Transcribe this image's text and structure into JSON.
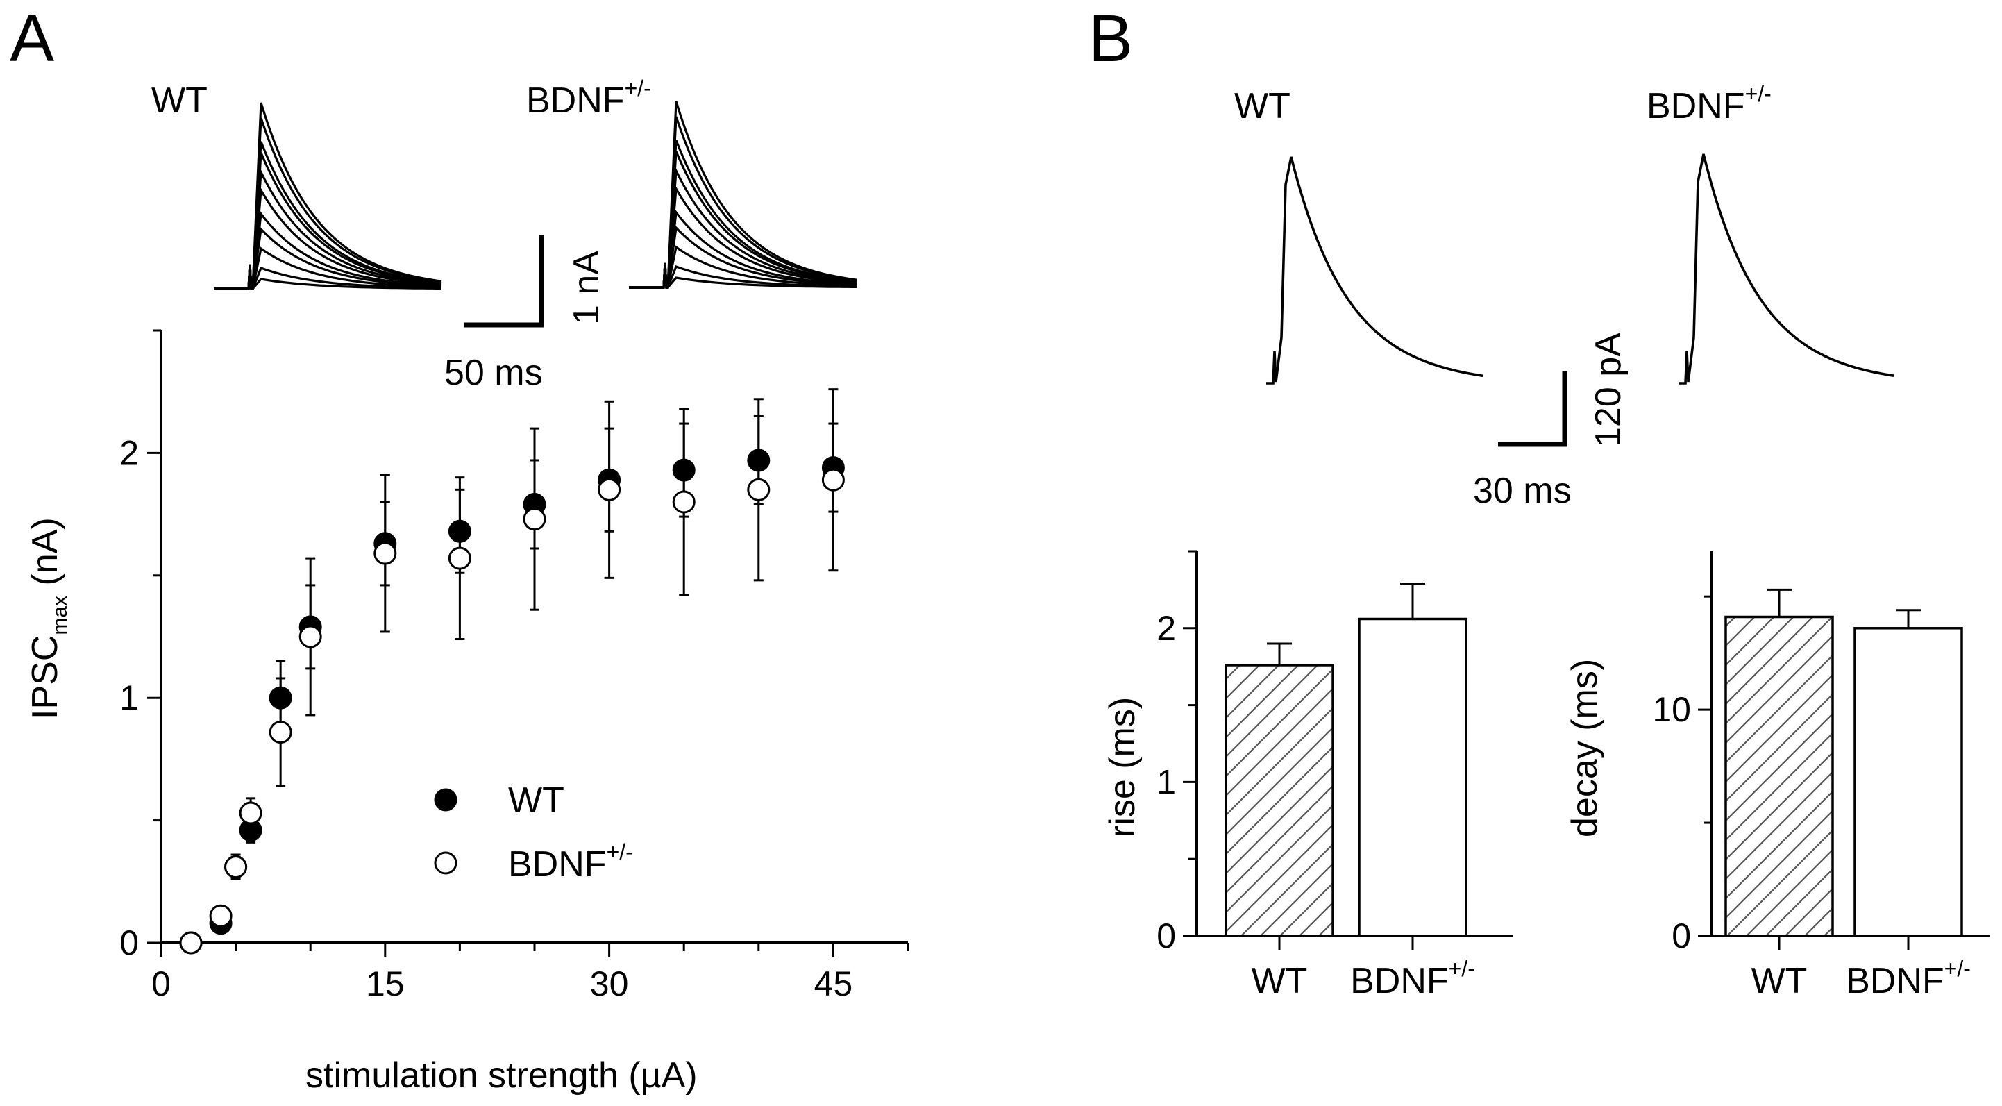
{
  "panels": {
    "a": {
      "letter": "A",
      "traces": {
        "wt_label": "WT",
        "bdnf_label": "BDNF",
        "bdnf_sup": "+/-",
        "scale_y": "1 nA",
        "scale_x": "50 ms"
      },
      "legend": {
        "wt": "WT",
        "bdnf": "BDNF",
        "bdnf_sup": "+/-"
      }
    },
    "b": {
      "letter": "B",
      "traces": {
        "wt_label": "WT",
        "bdnf_label": "BDNF",
        "bdnf_sup": "+/-",
        "scale_y": "120 pA",
        "scale_x": "30 ms"
      },
      "bar_labels": {
        "wt": "WT",
        "bdnf": "BDNF",
        "bdnf_sup": "+/-"
      }
    }
  },
  "chart_data": [
    {
      "id": "ipsc_vs_stim",
      "type": "scatter",
      "title": "",
      "xlabel": "stimulation strength (µA)",
      "ylabel": "IPSC",
      "ylabel_sub": "max",
      "ylabel_unit": " (nA)",
      "xlim": [
        0,
        50
      ],
      "ylim": [
        0,
        2.5
      ],
      "xticks": [
        0,
        15,
        30,
        45
      ],
      "yticks": [
        0,
        1,
        2
      ],
      "series": [
        {
          "name": "WT",
          "marker": "filled-circle",
          "x": [
            2,
            4,
            5,
            6,
            8,
            10,
            15,
            20,
            25,
            30,
            35,
            40,
            45
          ],
          "y": [
            0.0,
            0.08,
            0.31,
            0.46,
            1.0,
            1.29,
            1.63,
            1.68,
            1.79,
            1.89,
            1.93,
            1.97,
            1.94
          ],
          "err": [
            0.0,
            0.02,
            0.04,
            0.05,
            0.15,
            0.17,
            0.17,
            0.17,
            0.18,
            0.21,
            0.19,
            0.18,
            0.18
          ]
        },
        {
          "name": "BDNF+/-",
          "marker": "open-circle",
          "x": [
            2,
            4,
            5,
            6,
            8,
            10,
            15,
            20,
            25,
            30,
            35,
            40,
            45
          ],
          "y": [
            0.0,
            0.11,
            0.31,
            0.53,
            0.86,
            1.25,
            1.59,
            1.57,
            1.73,
            1.85,
            1.8,
            1.85,
            1.89
          ],
          "err": [
            0.0,
            0.03,
            0.05,
            0.06,
            0.22,
            0.32,
            0.32,
            0.33,
            0.37,
            0.36,
            0.38,
            0.37,
            0.37
          ]
        }
      ]
    },
    {
      "id": "rise_time",
      "type": "bar",
      "title": "",
      "categories": [
        "WT",
        "BDNF+/-"
      ],
      "values": [
        1.76,
        2.06
      ],
      "errors": [
        0.14,
        0.23
      ],
      "xlabel": "",
      "ylabel": "rise (ms)",
      "ylim": [
        0,
        2.5
      ],
      "yticks": [
        0,
        1,
        2
      ]
    },
    {
      "id": "decay_time",
      "type": "bar",
      "title": "",
      "categories": [
        "WT",
        "BDNF+/-"
      ],
      "values": [
        14.1,
        13.6
      ],
      "errors": [
        1.2,
        0.8
      ],
      "xlabel": "",
      "ylabel": "decay (ms)",
      "ylim": [
        0,
        17
      ],
      "yticks": [
        0,
        10
      ]
    }
  ]
}
